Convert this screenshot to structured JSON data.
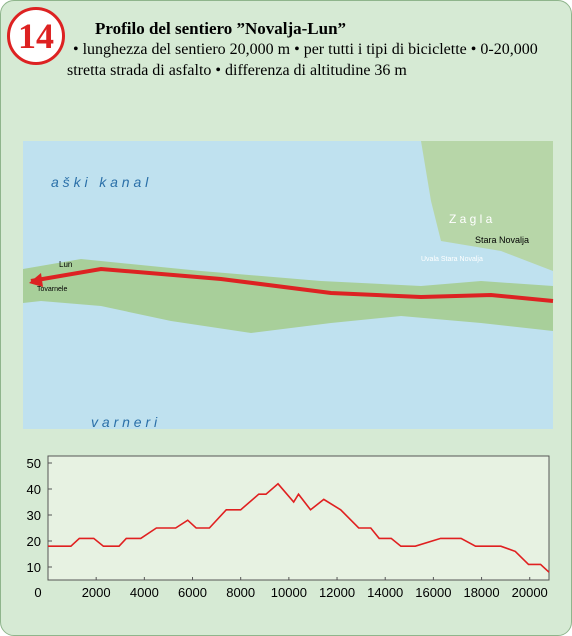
{
  "header": {
    "number": "14",
    "title": "Profilo del sentiero ”Novalja-Lun”",
    "description": "• lunghezza del sentiero 20,000 m • per tutti i tipi di biciclette • 0-20,000 stretta strada di asfalto • differenza di altitudine 36 m"
  },
  "map": {
    "labels": [
      "a š k i   k a n a l",
      "v a r n e r i",
      "Lun",
      "Tovarnele",
      "Stara Novalja",
      "Z a g l a",
      "Uvala Stara Novalja"
    ]
  },
  "chart_data": {
    "type": "line",
    "x": [
      0,
      950,
      1300,
      1900,
      2300,
      2950,
      3250,
      3850,
      4500,
      5300,
      5800,
      6150,
      6700,
      7400,
      8000,
      8750,
      9050,
      9550,
      10200,
      10400,
      10900,
      11450,
      12150,
      12900,
      13400,
      13750,
      14250,
      14650,
      15250,
      16300,
      17150,
      17750,
      18800,
      19400,
      19950,
      20450,
      20800
    ],
    "series": [
      {
        "color": "#e02020",
        "values": [
          18,
          18,
          21,
          21,
          18,
          18,
          21,
          21,
          25,
          25,
          28,
          25,
          25,
          32,
          32,
          38,
          38,
          42,
          35,
          38,
          32,
          36,
          32,
          25,
          25,
          21,
          21,
          18,
          18,
          21,
          21,
          18,
          18,
          16,
          11,
          11,
          8
        ]
      }
    ],
    "xlim": [
      0,
      20800
    ],
    "xticks": [
      0,
      2000,
      4000,
      6000,
      8000,
      10000,
      12000,
      14000,
      16000,
      18000,
      20000
    ],
    "ylim": [
      5,
      50
    ],
    "yticks": [
      10,
      20,
      30,
      40,
      50
    ]
  }
}
